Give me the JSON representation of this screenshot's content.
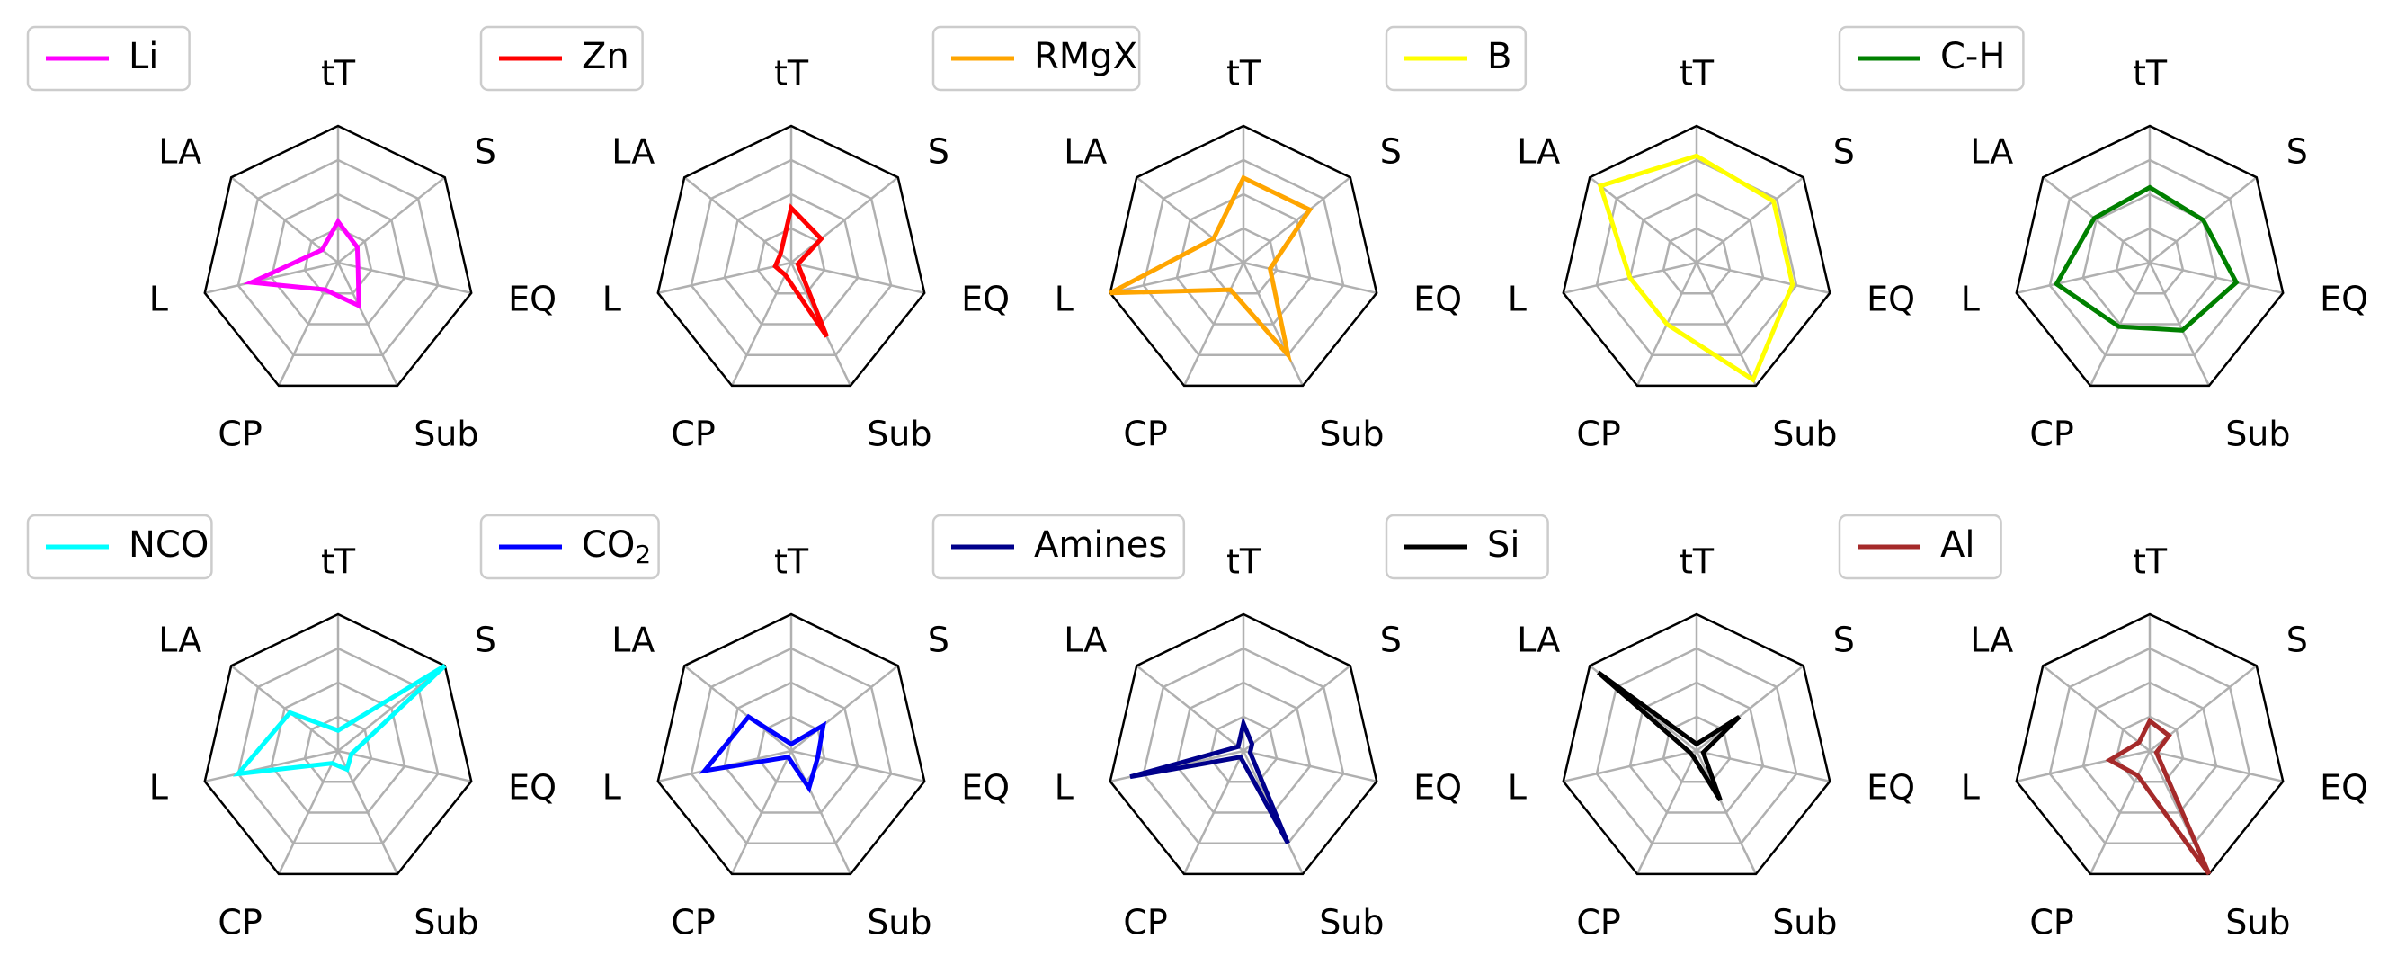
{
  "chart_data": {
    "type": "radar",
    "axes": [
      "tT",
      "S",
      "EQ",
      "Sub",
      "CP",
      "L",
      "LA"
    ],
    "range": [
      0,
      1
    ],
    "grid_levels": [
      0.25,
      0.5,
      0.75,
      1.0
    ],
    "grid": true,
    "legend_placement": "top-left",
    "panels": [
      {
        "label": "Li",
        "label_sub": "",
        "color": "#ff00ff",
        "values": [
          0.3,
          0.18,
          0.15,
          0.35,
          0.22,
          0.65,
          0.15
        ]
      },
      {
        "label": "Zn",
        "label_sub": "",
        "color": "#ff0000",
        "values": [
          0.4,
          0.28,
          0.05,
          0.6,
          0.1,
          0.12,
          0.1
        ]
      },
      {
        "label": "RMgX",
        "label_sub": "",
        "color": "#ffa500",
        "values": [
          0.62,
          0.62,
          0.2,
          0.75,
          0.22,
          1.0,
          0.28
        ]
      },
      {
        "label": "B",
        "label_sub": "",
        "color": "#ffff00",
        "values": [
          0.78,
          0.72,
          0.72,
          0.95,
          0.5,
          0.5,
          0.9
        ]
      },
      {
        "label": "C-H",
        "label_sub": "",
        "color": "#008000",
        "values": [
          0.55,
          0.5,
          0.65,
          0.55,
          0.52,
          0.7,
          0.52
        ]
      },
      {
        "label": "NCO",
        "label_sub": "",
        "color": "#00ffff",
        "values": [
          0.15,
          1.0,
          0.1,
          0.15,
          0.1,
          0.75,
          0.45
        ]
      },
      {
        "label": "CO",
        "label_sub": "2",
        "color": "#0000ff",
        "values": [
          0.05,
          0.3,
          0.2,
          0.3,
          0.05,
          0.65,
          0.4
        ]
      },
      {
        "label": "Amines",
        "label_sub": "",
        "color": "#00008b",
        "values": [
          0.2,
          0.08,
          0.05,
          0.75,
          0.05,
          0.85,
          0.05
        ]
      },
      {
        "label": "Si",
        "label_sub": "",
        "color": "#000000",
        "values": [
          0.05,
          0.4,
          0.05,
          0.4,
          0.05,
          0.05,
          0.92
        ]
      },
      {
        "label": "Al",
        "label_sub": "",
        "color": "#a52a2a",
        "values": [
          0.22,
          0.18,
          0.05,
          1.0,
          0.2,
          0.3,
          0.1
        ]
      }
    ]
  }
}
